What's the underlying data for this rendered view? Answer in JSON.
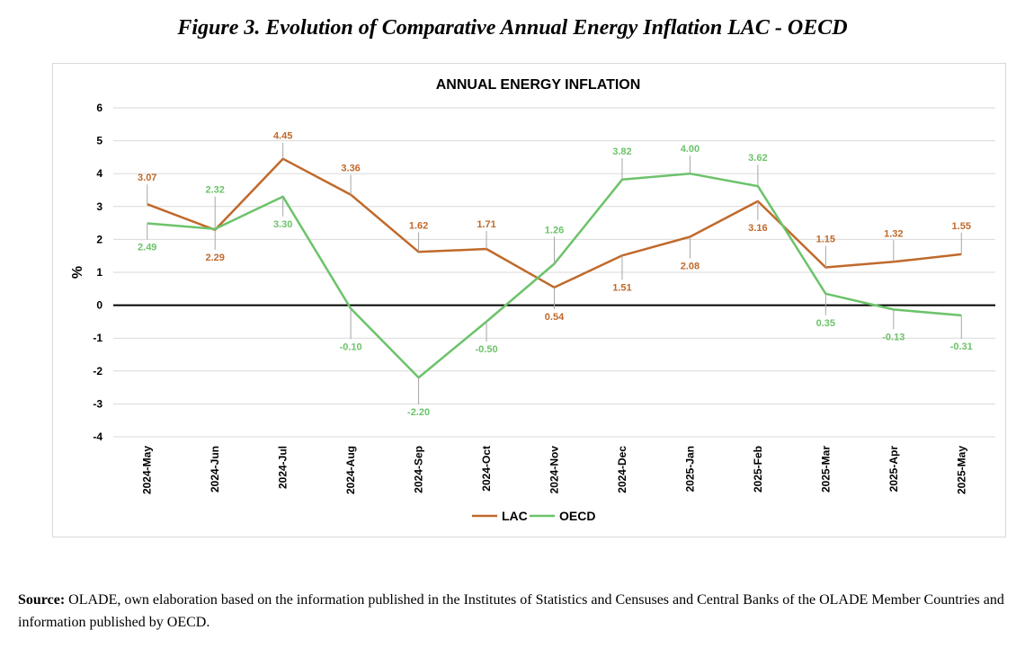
{
  "figure_title": "Figure 3. Evolution of Comparative Annual Energy Inflation LAC - OECD",
  "source": {
    "label": "Source:",
    "text": "OLADE, own elaboration based on the information published in the Institutes of Statistics and Censuses and Central Banks of the OLADE Member Countries and information published by OECD."
  },
  "colors": {
    "lac": "#c0692b",
    "oecd": "#6cc36a",
    "grid": "#d9d9d9",
    "zero_line": "#000000"
  },
  "chart_data": {
    "type": "line",
    "title": "ANNUAL ENERGY INFLATION",
    "xlabel": "",
    "ylabel": "%",
    "ylim": [
      -4,
      6
    ],
    "yticks": [
      6,
      5,
      4,
      3,
      2,
      1,
      0,
      -1,
      -2,
      -3,
      -4
    ],
    "grid": true,
    "legend_position": "bottom",
    "categories": [
      "2024-May",
      "2024-Jun",
      "2024-Jul",
      "2024-Aug",
      "2024-Sep",
      "2024-Oct",
      "2024-Nov",
      "2024-Dec",
      "2025-Jan",
      "2025-Feb",
      "2025-Mar",
      "2025-Apr",
      "2025-May"
    ],
    "series": [
      {
        "name": "LAC",
        "color": "#c0692b",
        "values": [
          3.07,
          2.29,
          4.45,
          3.36,
          1.62,
          1.71,
          0.54,
          1.51,
          2.08,
          3.16,
          1.15,
          1.32,
          1.55
        ],
        "labels": [
          "3.07",
          "2.29",
          "4.45",
          "3.36",
          "1.62",
          "1.71",
          "0.54",
          "1.51",
          "2.08",
          "3.16",
          "1.15",
          "1.32",
          "1.55"
        ]
      },
      {
        "name": "OECD",
        "color": "#6cc36a",
        "values": [
          2.49,
          2.32,
          3.3,
          -0.1,
          -2.2,
          -0.5,
          1.26,
          3.82,
          4.0,
          3.62,
          0.35,
          -0.13,
          -0.31
        ],
        "labels": [
          "2.49",
          "2.32",
          "3.30",
          "-0.10",
          "-2.20",
          "-0.50",
          "1.26",
          "3.82",
          "4.00",
          "3.62",
          "0.35",
          "-0.13",
          "-0.31"
        ]
      }
    ]
  }
}
